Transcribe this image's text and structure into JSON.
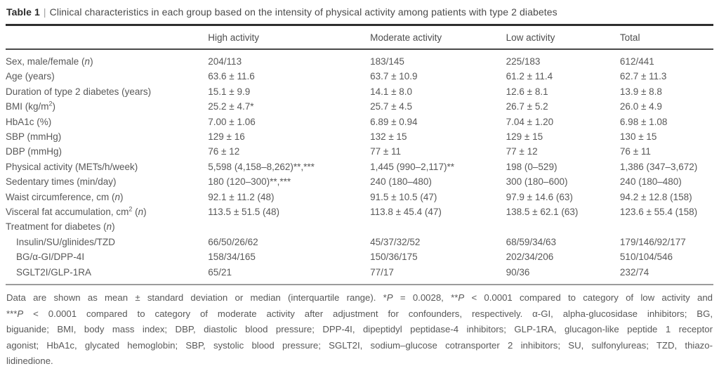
{
  "table": {
    "title": {
      "label": "Table 1",
      "separator": "|",
      "text": "Clinical characteristics in each group based on the intensity of physical activity among patients with type 2 diabetes"
    },
    "columns": [
      "",
      "High activity",
      "Moderate activity",
      "Low activity",
      "Total"
    ],
    "rows": [
      {
        "label": "Sex, male/female (n)",
        "indent": false,
        "values": [
          "204/113",
          "183/145",
          "225/183",
          "612/441"
        ]
      },
      {
        "label": "Age (years)",
        "indent": false,
        "values": [
          "63.6 ± 11.6",
          "63.7 ± 10.9",
          "61.2 ± 11.4",
          "62.7 ± 11.3"
        ]
      },
      {
        "label": "Duration of type 2 diabetes (years)",
        "indent": false,
        "values": [
          "15.1 ± 9.9",
          "14.1 ± 8.0",
          "12.6 ± 8.1",
          "13.9 ± 8.8"
        ]
      },
      {
        "label": "BMI (kg/m²)",
        "indent": false,
        "values": [
          "25.2 ± 4.7*",
          "25.7 ± 4.5",
          "26.7 ± 5.2",
          "26.0 ± 4.9"
        ]
      },
      {
        "label": "HbA1c (%)",
        "indent": false,
        "values": [
          "7.00 ± 1.06",
          "6.89 ± 0.94",
          "7.04 ± 1.20",
          "6.98 ± 1.08"
        ]
      },
      {
        "label": "SBP (mmHg)",
        "indent": false,
        "values": [
          "129 ± 16",
          "132 ± 15",
          "129 ± 15",
          "130 ± 15"
        ]
      },
      {
        "label": "DBP (mmHg)",
        "indent": false,
        "values": [
          "76 ± 12",
          "77 ± 11",
          "77 ± 12",
          "76 ± 11"
        ]
      },
      {
        "label": "Physical activity (METs/h/week)",
        "indent": false,
        "values": [
          "5,598 (4,158–8,262)**,***",
          "1,445 (990–2,117)**",
          "198 (0–529)",
          "1,386 (347–3,672)"
        ]
      },
      {
        "label": "Sedentary times (min/day)",
        "indent": false,
        "values": [
          "180 (120–300)**,***",
          "240 (180–480)",
          "300 (180–600)",
          "240 (180–480)"
        ]
      },
      {
        "label": "Waist circumference, cm (n)",
        "indent": false,
        "values": [
          "92.1 ± 11.2 (48)",
          "91.5 ± 10.5 (47)",
          "97.9 ± 14.6 (63)",
          "94.2 ± 12.8 (158)"
        ]
      },
      {
        "label": "Visceral fat accumulation, cm² (n)",
        "indent": false,
        "values": [
          "113.5 ± 51.5 (48)",
          "113.8 ± 45.4 (47)",
          "138.5 ± 62.1 (63)",
          "123.6 ± 55.4 (158)"
        ]
      },
      {
        "label": "Treatment for diabetes (n)",
        "indent": false,
        "values": [
          "",
          "",
          "",
          ""
        ]
      },
      {
        "label": "Insulin/SU/glinides/TZD",
        "indent": true,
        "values": [
          "66/50/26/62",
          "45/37/32/52",
          "68/59/34/63",
          "179/146/92/177"
        ]
      },
      {
        "label": "BG/α-GI/DPP-4I",
        "indent": true,
        "values": [
          "158/34/165",
          "150/36/175",
          "202/34/206",
          "510/104/546"
        ]
      },
      {
        "label": "SGLT2I/GLP-1RA",
        "indent": true,
        "values": [
          "65/21",
          "77/17",
          "90/36",
          "232/74"
        ]
      }
    ],
    "footnote_lines": [
      "Data are shown as mean ± standard deviation or median (interquartile range). *P = 0.0028, **P < 0.0001 compared to category of low activity and",
      "***P < 0.0001 compared to category of moderate activity after adjustment for confounders, respectively. α-GI, alpha-glucosidase inhibitors; BG,",
      "biguanide; BMI, body mass index; DBP, diastolic blood pressure; DPP-4I, dipeptidyl peptidase-4 inhibitors; GLP-1RA, glucagon-like peptide 1 receptor",
      "agonist; HbA1c, glycated hemoglobin; SBP, systolic blood pressure; SGLT2I, sodium–glucose cotransporter 2 inhibitors; SU, sulfonylureas; TZD, thiazo-",
      "lidinedione."
    ]
  }
}
